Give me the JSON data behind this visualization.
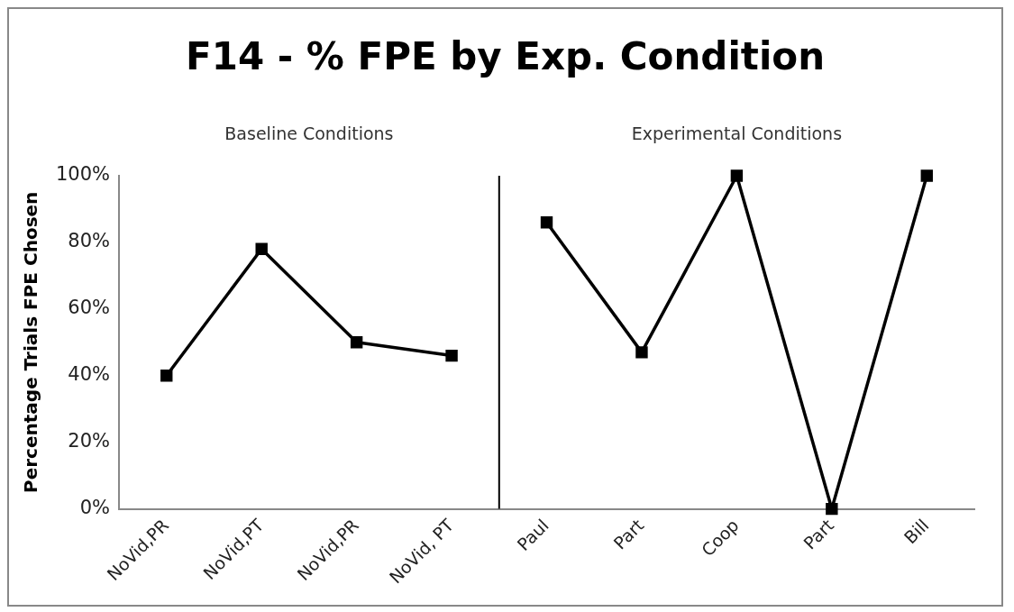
{
  "chart_data": {
    "type": "line",
    "title": "F14 - % FPE by Exp. Condition",
    "ylabel": "Percentage Trials FPE Chosen",
    "categories": [
      "NoVid,PR",
      "NoVid,PT",
      "NoVid,PR",
      "NoVid, PT",
      "Paul",
      "Part",
      "Coop",
      "Part",
      "Bill"
    ],
    "series": [
      {
        "color": "#000000",
        "values": [
          40,
          78,
          50,
          46,
          null,
          null,
          null,
          null,
          null
        ]
      },
      {
        "color": "#000000",
        "values": [
          null,
          null,
          null,
          null,
          86,
          47,
          100,
          0,
          100
        ]
      }
    ],
    "ylim": [
      0,
      100
    ],
    "yticks": [
      {
        "value": 0,
        "label": "0%"
      },
      {
        "value": 20,
        "label": "20%"
      },
      {
        "value": 40,
        "label": "40%"
      },
      {
        "value": 60,
        "label": "60%"
      },
      {
        "value": 80,
        "label": "80%"
      },
      {
        "value": 100,
        "label": "100%"
      }
    ],
    "annotations": [
      "Baseline Conditions",
      "Experimental Conditions"
    ],
    "grid": false,
    "legend": false,
    "marker": "square",
    "line_style": "solid"
  }
}
